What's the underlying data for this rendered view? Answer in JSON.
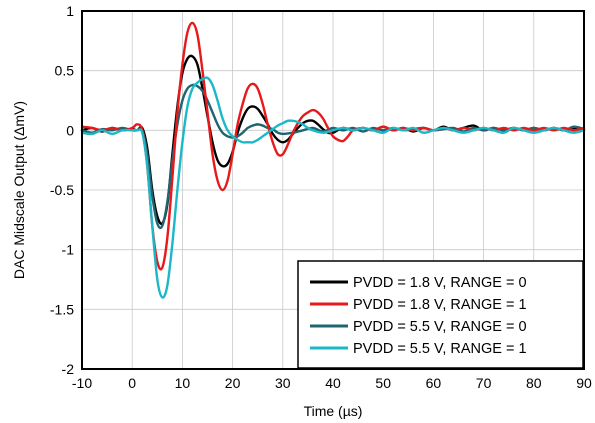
{
  "chart_data": {
    "type": "line",
    "title": "",
    "xlabel": "Time (µs)",
    "ylabel": "DAC Midscale Output (ΔmV)",
    "xlim": [
      -10,
      90
    ],
    "ylim": [
      -2,
      1
    ],
    "xticks": [
      -10,
      0,
      10,
      20,
      30,
      40,
      50,
      60,
      70,
      80,
      90
    ],
    "yticks": [
      -2,
      -1.5,
      -1,
      -0.5,
      0,
      0.5,
      1
    ],
    "xtick_labels": [
      "-10",
      "0",
      "10",
      "20",
      "30",
      "40",
      "50",
      "60",
      "70",
      "80",
      "90"
    ],
    "ytick_labels": [
      "-2",
      "-1.5",
      "-1",
      "-0.5",
      "0",
      "0.5",
      "1"
    ],
    "grid": true,
    "legend_position": "bottom-right",
    "series": [
      {
        "name": "PVDD = 1.8 V, RANGE = 0",
        "color": "#000000",
        "points": [
          [
            -10,
            0.0
          ],
          [
            -8,
            0.02
          ],
          [
            -6,
            -0.01
          ],
          [
            -4,
            0.02
          ],
          [
            -2,
            0.0
          ],
          [
            0,
            0.01
          ],
          [
            1,
            0.0
          ],
          [
            2,
            0.02
          ],
          [
            3,
            -0.15
          ],
          [
            4,
            -0.5
          ],
          [
            5,
            -0.72
          ],
          [
            6,
            -0.78
          ],
          [
            7,
            -0.62
          ],
          [
            8,
            -0.2
          ],
          [
            9,
            0.2
          ],
          [
            10,
            0.48
          ],
          [
            11,
            0.6
          ],
          [
            12,
            0.62
          ],
          [
            13,
            0.55
          ],
          [
            14,
            0.35
          ],
          [
            15,
            0.12
          ],
          [
            16,
            -0.1
          ],
          [
            17,
            -0.25
          ],
          [
            18,
            -0.3
          ],
          [
            19,
            -0.28
          ],
          [
            20,
            -0.18
          ],
          [
            21,
            -0.02
          ],
          [
            22,
            0.1
          ],
          [
            23,
            0.18
          ],
          [
            24,
            0.2
          ],
          [
            25,
            0.18
          ],
          [
            26,
            0.12
          ],
          [
            27,
            0.05
          ],
          [
            28,
            -0.03
          ],
          [
            29,
            -0.08
          ],
          [
            30,
            -0.1
          ],
          [
            31,
            -0.08
          ],
          [
            32,
            -0.03
          ],
          [
            33,
            0.02
          ],
          [
            34,
            0.06
          ],
          [
            35,
            0.08
          ],
          [
            36,
            0.08
          ],
          [
            37,
            0.05
          ],
          [
            38,
            0.01
          ],
          [
            39,
            -0.02
          ],
          [
            40,
            -0.02
          ],
          [
            42,
            0.02
          ],
          [
            44,
            0.0
          ],
          [
            46,
            0.02
          ],
          [
            48,
            0.0
          ],
          [
            50,
            0.03
          ],
          [
            52,
            0.0
          ],
          [
            54,
            0.02
          ],
          [
            56,
            -0.01
          ],
          [
            58,
            0.02
          ],
          [
            60,
            0.0
          ],
          [
            62,
            0.03
          ],
          [
            64,
            0.0
          ],
          [
            66,
            0.02
          ],
          [
            68,
            0.04
          ],
          [
            70,
            0.0
          ],
          [
            72,
            0.02
          ],
          [
            74,
            0.0
          ],
          [
            76,
            0.02
          ],
          [
            78,
            0.0
          ],
          [
            80,
            0.02
          ],
          [
            82,
            0.0
          ],
          [
            84,
            0.02
          ],
          [
            86,
            0.0
          ],
          [
            88,
            0.02
          ],
          [
            90,
            0.0
          ]
        ]
      },
      {
        "name": "PVDD = 1.8 V, RANGE = 1",
        "color": "#e8191b",
        "points": [
          [
            -10,
            0.03
          ],
          [
            -8,
            0.02
          ],
          [
            -6,
            0.0
          ],
          [
            -4,
            0.02
          ],
          [
            -2,
            0.0
          ],
          [
            0,
            0.02
          ],
          [
            1,
            0.05
          ],
          [
            2,
            0.0
          ],
          [
            3,
            -0.3
          ],
          [
            4,
            -0.8
          ],
          [
            5,
            -1.1
          ],
          [
            6,
            -1.15
          ],
          [
            7,
            -0.9
          ],
          [
            8,
            -0.4
          ],
          [
            9,
            0.15
          ],
          [
            10,
            0.55
          ],
          [
            11,
            0.82
          ],
          [
            12,
            0.9
          ],
          [
            13,
            0.8
          ],
          [
            14,
            0.5
          ],
          [
            15,
            0.15
          ],
          [
            16,
            -0.2
          ],
          [
            17,
            -0.42
          ],
          [
            18,
            -0.5
          ],
          [
            19,
            -0.42
          ],
          [
            20,
            -0.2
          ],
          [
            21,
            0.05
          ],
          [
            22,
            0.22
          ],
          [
            23,
            0.35
          ],
          [
            24,
            0.39
          ],
          [
            25,
            0.35
          ],
          [
            26,
            0.22
          ],
          [
            27,
            0.05
          ],
          [
            28,
            -0.1
          ],
          [
            29,
            -0.2
          ],
          [
            30,
            -0.2
          ],
          [
            31,
            -0.12
          ],
          [
            32,
            -0.02
          ],
          [
            33,
            0.06
          ],
          [
            34,
            0.12
          ],
          [
            35,
            0.15
          ],
          [
            36,
            0.17
          ],
          [
            37,
            0.15
          ],
          [
            38,
            0.1
          ],
          [
            39,
            0.02
          ],
          [
            40,
            -0.05
          ],
          [
            41,
            -0.08
          ],
          [
            42,
            -0.09
          ],
          [
            43,
            -0.05
          ],
          [
            44,
            0.0
          ],
          [
            46,
            0.02
          ],
          [
            48,
            0.0
          ],
          [
            50,
            0.03
          ],
          [
            52,
            0.0
          ],
          [
            54,
            0.02
          ],
          [
            56,
            0.0
          ],
          [
            58,
            0.02
          ],
          [
            60,
            0.0
          ],
          [
            62,
            0.02
          ],
          [
            64,
            0.0
          ],
          [
            66,
            0.02
          ],
          [
            68,
            0.0
          ],
          [
            70,
            0.02
          ],
          [
            72,
            0.0
          ],
          [
            74,
            0.02
          ],
          [
            76,
            0.0
          ],
          [
            78,
            0.02
          ],
          [
            80,
            0.0
          ],
          [
            82,
            0.02
          ],
          [
            84,
            0.0
          ],
          [
            86,
            0.02
          ],
          [
            88,
            0.0
          ],
          [
            90,
            0.02
          ]
        ]
      },
      {
        "name": "PVDD = 5.5 V, RANGE = 0",
        "color": "#1f6470",
        "points": [
          [
            -10,
            0.0
          ],
          [
            -8,
            -0.02
          ],
          [
            -6,
            0.01
          ],
          [
            -4,
            0.0
          ],
          [
            -2,
            0.02
          ],
          [
            0,
            0.0
          ],
          [
            1,
            0.0
          ],
          [
            2,
            0.0
          ],
          [
            3,
            -0.2
          ],
          [
            4,
            -0.55
          ],
          [
            5,
            -0.78
          ],
          [
            6,
            -0.8
          ],
          [
            7,
            -0.6
          ],
          [
            8,
            -0.25
          ],
          [
            9,
            0.05
          ],
          [
            10,
            0.25
          ],
          [
            11,
            0.35
          ],
          [
            12,
            0.38
          ],
          [
            13,
            0.37
          ],
          [
            14,
            0.33
          ],
          [
            15,
            0.25
          ],
          [
            16,
            0.15
          ],
          [
            17,
            0.05
          ],
          [
            18,
            -0.02
          ],
          [
            19,
            -0.05
          ],
          [
            20,
            -0.06
          ],
          [
            21,
            -0.05
          ],
          [
            22,
            -0.02
          ],
          [
            23,
            0.02
          ],
          [
            24,
            0.04
          ],
          [
            25,
            0.05
          ],
          [
            26,
            0.04
          ],
          [
            27,
            0.02
          ],
          [
            28,
            0.01
          ],
          [
            29,
            -0.02
          ],
          [
            30,
            -0.03
          ],
          [
            32,
            -0.02
          ],
          [
            34,
            0.0
          ],
          [
            36,
            0.02
          ],
          [
            38,
            -0.01
          ],
          [
            40,
            0.02
          ],
          [
            42,
            0.0
          ],
          [
            44,
            0.02
          ],
          [
            46,
            -0.01
          ],
          [
            48,
            0.02
          ],
          [
            50,
            0.0
          ],
          [
            52,
            0.02
          ],
          [
            54,
            0.0
          ],
          [
            56,
            0.01
          ],
          [
            58,
            0.02
          ],
          [
            60,
            0.0
          ],
          [
            62,
            0.01
          ],
          [
            64,
            0.02
          ],
          [
            66,
            -0.01
          ],
          [
            68,
            0.02
          ],
          [
            70,
            0.0
          ],
          [
            72,
            0.02
          ],
          [
            74,
            0.0
          ],
          [
            76,
            0.02
          ],
          [
            78,
            0.0
          ],
          [
            80,
            0.02
          ],
          [
            82,
            0.0
          ],
          [
            84,
            0.02
          ],
          [
            86,
            0.0
          ],
          [
            88,
            0.03
          ],
          [
            90,
            0.01
          ]
        ]
      },
      {
        "name": "PVDD = 5.5 V, RANGE = 1",
        "color": "#1bb8c8",
        "points": [
          [
            -10,
            -0.02
          ],
          [
            -8,
            -0.03
          ],
          [
            -6,
            0.0
          ],
          [
            -4,
            -0.03
          ],
          [
            -2,
            0.0
          ],
          [
            0,
            0.0
          ],
          [
            1,
            0.0
          ],
          [
            2,
            -0.02
          ],
          [
            3,
            -0.3
          ],
          [
            4,
            -0.8
          ],
          [
            5,
            -1.25
          ],
          [
            6,
            -1.4
          ],
          [
            7,
            -1.3
          ],
          [
            8,
            -0.95
          ],
          [
            9,
            -0.5
          ],
          [
            10,
            -0.1
          ],
          [
            11,
            0.2
          ],
          [
            12,
            0.35
          ],
          [
            13,
            0.4
          ],
          [
            14,
            0.43
          ],
          [
            15,
            0.44
          ],
          [
            16,
            0.38
          ],
          [
            17,
            0.25
          ],
          [
            18,
            0.1
          ],
          [
            19,
            0.0
          ],
          [
            20,
            -0.05
          ],
          [
            21,
            -0.08
          ],
          [
            22,
            -0.1
          ],
          [
            23,
            -0.1
          ],
          [
            24,
            -0.1
          ],
          [
            25,
            -0.08
          ],
          [
            26,
            -0.05
          ],
          [
            27,
            -0.02
          ],
          [
            28,
            0.01
          ],
          [
            29,
            0.04
          ],
          [
            30,
            0.06
          ],
          [
            31,
            0.08
          ],
          [
            32,
            0.08
          ],
          [
            33,
            0.07
          ],
          [
            34,
            0.05
          ],
          [
            35,
            0.02
          ],
          [
            36,
            0.0
          ],
          [
            38,
            -0.02
          ],
          [
            40,
            0.0
          ],
          [
            42,
            0.02
          ],
          [
            44,
            0.0
          ],
          [
            46,
            0.02
          ],
          [
            48,
            0.0
          ],
          [
            50,
            -0.02
          ],
          [
            52,
            0.02
          ],
          [
            54,
            0.0
          ],
          [
            56,
            0.02
          ],
          [
            58,
            -0.02
          ],
          [
            60,
            0.0
          ],
          [
            62,
            0.02
          ],
          [
            64,
            0.0
          ],
          [
            66,
            -0.02
          ],
          [
            68,
            0.0
          ],
          [
            70,
            0.02
          ],
          [
            72,
            0.0
          ],
          [
            74,
            -0.02
          ],
          [
            76,
            0.02
          ],
          [
            78,
            0.0
          ],
          [
            80,
            -0.02
          ],
          [
            82,
            0.0
          ],
          [
            84,
            0.02
          ],
          [
            86,
            0.0
          ],
          [
            88,
            -0.02
          ],
          [
            90,
            0.0
          ]
        ]
      }
    ]
  }
}
